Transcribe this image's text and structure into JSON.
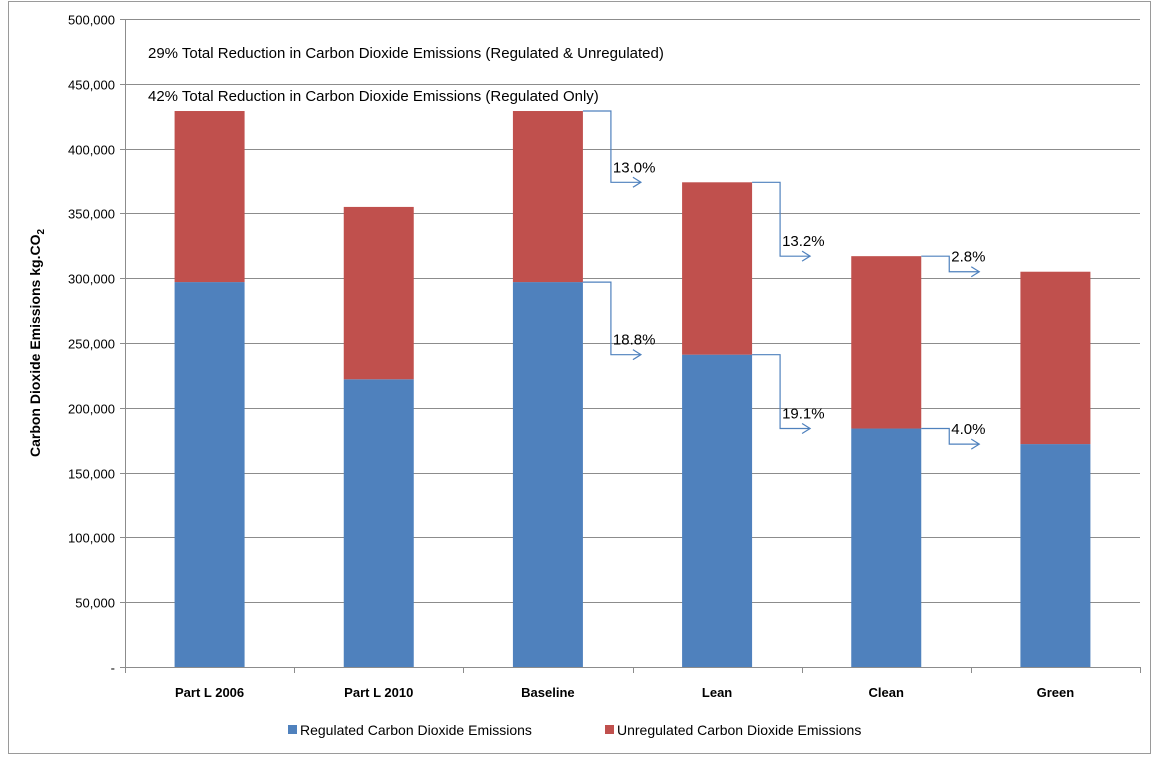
{
  "chart_data": {
    "type": "bar",
    "stacked": true,
    "categories": [
      "Part L 2006",
      "Part L 2010",
      "Baseline",
      "Lean",
      "Clean",
      "Green"
    ],
    "series": [
      {
        "name": "Regulated Carbon Dioxide Emissions",
        "color": "#4F81BD",
        "values": [
          297000,
          222000,
          297000,
          241000,
          184000,
          172000
        ]
      },
      {
        "name": "Unregulated Carbon Dioxide Emissions",
        "color": "#C0504D",
        "values": [
          132000,
          133000,
          132000,
          133000,
          133000,
          133000
        ]
      }
    ],
    "ylabel": "Carbon Dioxide Emissions kg.CO",
    "ylabel_subscript": "2",
    "ylim": [
      0,
      500000
    ],
    "yticks": [
      0,
      50000,
      100000,
      150000,
      200000,
      250000,
      300000,
      350000,
      400000,
      450000,
      500000
    ],
    "ytick_labels": [
      "-",
      "50,000",
      "100,000",
      "150,000",
      "200,000",
      "250,000",
      "300,000",
      "350,000",
      "400,000",
      "450,000",
      "500,000"
    ],
    "grid": true,
    "legend_position": "bottom",
    "annotations": [
      "29% Total Reduction in Carbon Dioxide Emissions (Regulated & Unregulated)",
      "42% Total Reduction in Carbon Dioxide Emissions (Regulated Only)"
    ],
    "step_labels": {
      "total": [
        {
          "from": "Baseline",
          "to": "Lean",
          "label": "13.0%"
        },
        {
          "from": "Lean",
          "to": "Clean",
          "label": "13.2%"
        },
        {
          "from": "Clean",
          "to": "Green",
          "label": "2.8%"
        }
      ],
      "regulated": [
        {
          "from": "Baseline",
          "to": "Lean",
          "label": "18.8%"
        },
        {
          "from": "Lean",
          "to": "Clean",
          "label": "19.1%"
        },
        {
          "from": "Clean",
          "to": "Green",
          "label": "4.0%"
        }
      ]
    },
    "arrow_color": "#4F81BD"
  }
}
